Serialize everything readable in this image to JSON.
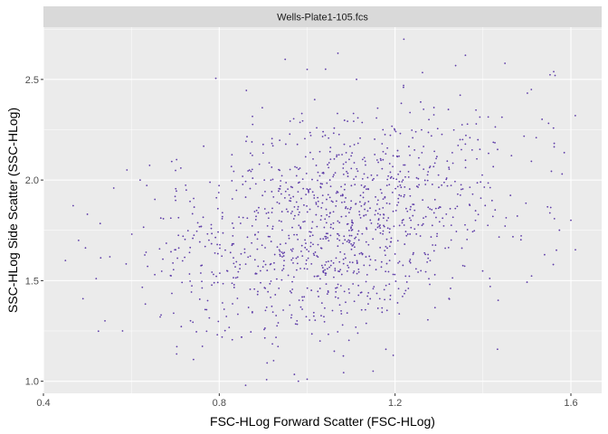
{
  "colors": {
    "panel_background": "#ebebeb",
    "grid_major": "#ffffff",
    "strip_background": "#d9d9d9",
    "point_color": "#5e3ca8",
    "tick_color": "#333333"
  },
  "chart_data": {
    "type": "scatter",
    "facet_label": "Wells-Plate1-105.fcs",
    "xlabel": "FSC-HLog Forward Scatter (FSC-HLog)",
    "ylabel": "SSC-HLog Side Scatter (SSC-HLog)",
    "xlim": [
      0.4,
      1.67
    ],
    "ylim": [
      0.94,
      2.76
    ],
    "x_ticks": [
      0.4,
      0.8,
      1.2,
      1.6
    ],
    "x_tick_labels": [
      "0.4",
      "0.8",
      "1.2",
      "1.6"
    ],
    "y_ticks": [
      1.0,
      1.5,
      2.0,
      2.5
    ],
    "y_tick_labels": [
      "1.0",
      "1.5",
      "2.0",
      "2.5"
    ],
    "grid": true,
    "legend": "none",
    "point_distribution": {
      "n_points": 1200,
      "x_mean": 1.06,
      "x_sd": 0.2,
      "y_mean": 1.78,
      "y_sd": 0.28,
      "correlation": 0.3,
      "x_range": [
        0.45,
        1.62
      ],
      "y_range": [
        0.97,
        2.7
      ]
    },
    "outlier_points": [
      {
        "x": 0.45,
        "y": 1.6
      },
      {
        "x": 0.48,
        "y": 1.7
      },
      {
        "x": 0.49,
        "y": 1.41
      },
      {
        "x": 0.5,
        "y": 1.83
      },
      {
        "x": 0.52,
        "y": 1.51
      },
      {
        "x": 0.54,
        "y": 1.3
      },
      {
        "x": 0.56,
        "y": 1.96
      },
      {
        "x": 0.58,
        "y": 1.25
      },
      {
        "x": 0.59,
        "y": 2.05
      },
      {
        "x": 0.62,
        "y": 2.0
      },
      {
        "x": 0.95,
        "y": 2.6
      },
      {
        "x": 1.0,
        "y": 2.55
      },
      {
        "x": 1.07,
        "y": 2.63
      },
      {
        "x": 1.22,
        "y": 2.7
      },
      {
        "x": 1.36,
        "y": 2.62
      },
      {
        "x": 1.45,
        "y": 2.58
      },
      {
        "x": 1.51,
        "y": 2.45
      },
      {
        "x": 1.56,
        "y": 1.58
      },
      {
        "x": 1.58,
        "y": 2.03
      },
      {
        "x": 1.6,
        "y": 1.8
      },
      {
        "x": 1.61,
        "y": 2.32
      },
      {
        "x": 0.86,
        "y": 0.98
      },
      {
        "x": 0.98,
        "y": 1.0
      },
      {
        "x": 1.0,
        "y": 1.01
      },
      {
        "x": 1.15,
        "y": 1.05
      }
    ]
  }
}
